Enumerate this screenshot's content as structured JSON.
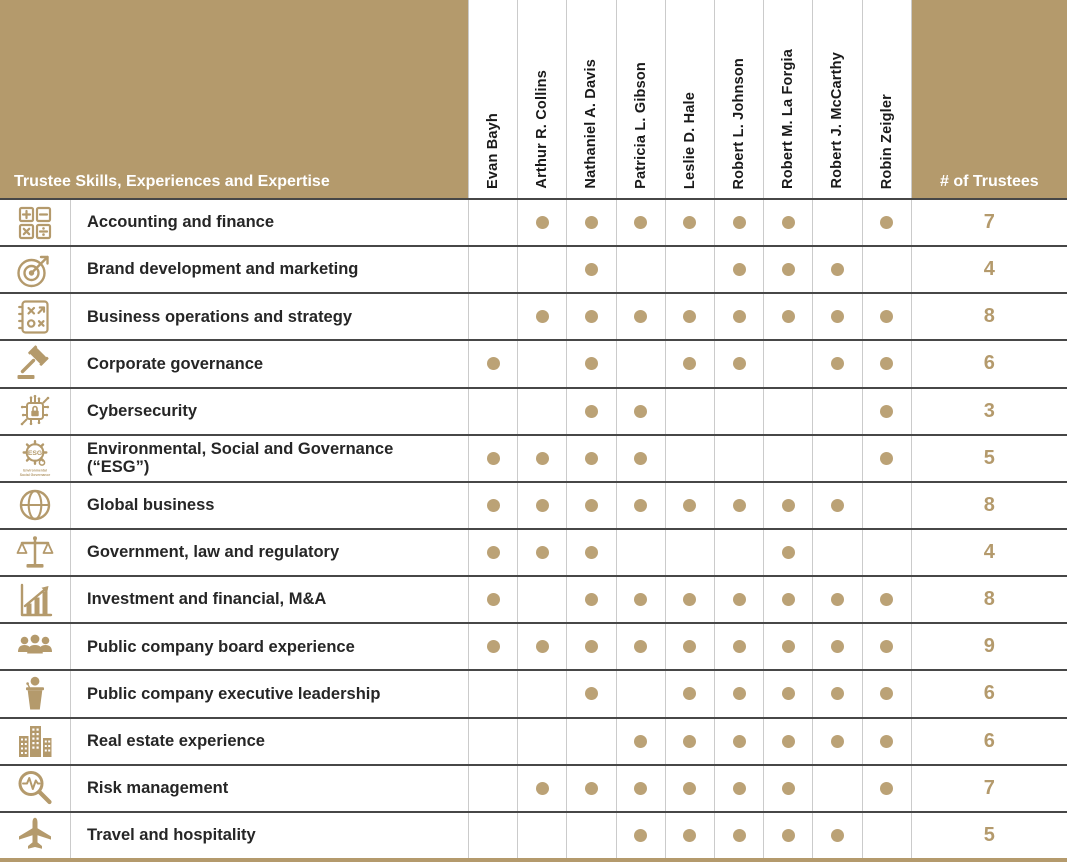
{
  "colors": {
    "accent": "#b49a6c",
    "dot": "#bba276",
    "row_line": "#474747",
    "column_line": "#cbcbcb",
    "label_text": "#262626",
    "header_text": "#ffffff"
  },
  "table": {
    "corner_label": "Trustee Skills, Experiences and Expertise",
    "count_header": "# of Trustees",
    "columns": [
      "Evan Bayh",
      "Arthur R. Collins",
      "Nathaniel A. Davis",
      "Patricia L. Gibson",
      "Leslie D. Hale",
      "Robert L. Johnson",
      "Robert M. La Forgia",
      "Robert J. McCarthy",
      "Robin Zeigler"
    ],
    "rows": [
      {
        "label": "Accounting and finance",
        "icon": "calculator-icon",
        "dots": [
          0,
          1,
          1,
          1,
          1,
          1,
          1,
          0,
          1
        ],
        "count": 7
      },
      {
        "label": "Brand development and marketing",
        "icon": "target-icon",
        "dots": [
          0,
          0,
          1,
          0,
          0,
          1,
          1,
          1,
          0
        ],
        "count": 4
      },
      {
        "label": "Business operations and strategy",
        "icon": "strategy-icon",
        "dots": [
          0,
          1,
          1,
          1,
          1,
          1,
          1,
          1,
          1
        ],
        "count": 8
      },
      {
        "label": "Corporate governance",
        "icon": "gavel-icon",
        "dots": [
          1,
          0,
          1,
          0,
          1,
          1,
          0,
          1,
          1
        ],
        "count": 6
      },
      {
        "label": "Cybersecurity",
        "icon": "cybersecurity-icon",
        "dots": [
          0,
          0,
          1,
          1,
          0,
          0,
          0,
          0,
          1
        ],
        "count": 3
      },
      {
        "label": "Environmental, Social and Governance (“ESG”)",
        "icon": "esg-gear-icon",
        "dots": [
          1,
          1,
          1,
          1,
          0,
          0,
          0,
          0,
          1
        ],
        "count": 5
      },
      {
        "label": "Global business",
        "icon": "globe-icon",
        "dots": [
          1,
          1,
          1,
          1,
          1,
          1,
          1,
          1,
          0
        ],
        "count": 8
      },
      {
        "label": "Government, law and regulatory",
        "icon": "scales-icon",
        "dots": [
          1,
          1,
          1,
          0,
          0,
          0,
          1,
          0,
          0
        ],
        "count": 4
      },
      {
        "label": "Investment and financial, M&A",
        "icon": "bar-chart-icon",
        "dots": [
          1,
          0,
          1,
          1,
          1,
          1,
          1,
          1,
          1
        ],
        "count": 8
      },
      {
        "label": "Public company board experience",
        "icon": "people-icon",
        "dots": [
          1,
          1,
          1,
          1,
          1,
          1,
          1,
          1,
          1
        ],
        "count": 9
      },
      {
        "label": "Public company executive leadership",
        "icon": "podium-icon",
        "dots": [
          0,
          0,
          1,
          0,
          1,
          1,
          1,
          1,
          1
        ],
        "count": 6
      },
      {
        "label": "Real estate experience",
        "icon": "buildings-icon",
        "dots": [
          0,
          0,
          0,
          1,
          1,
          1,
          1,
          1,
          1
        ],
        "count": 6
      },
      {
        "label": "Risk management",
        "icon": "magnifier-pulse-icon",
        "dots": [
          0,
          1,
          1,
          1,
          1,
          1,
          1,
          0,
          1
        ],
        "count": 7
      },
      {
        "label": "Travel and hospitality",
        "icon": "airplane-icon",
        "dots": [
          0,
          0,
          0,
          1,
          1,
          1,
          1,
          1,
          0
        ],
        "count": 5
      }
    ]
  }
}
